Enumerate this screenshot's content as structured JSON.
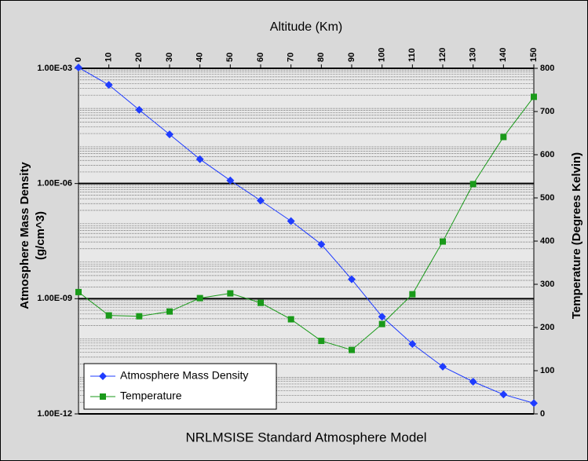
{
  "chart_data": {
    "type": "line",
    "title": "NRLMSISE Standard Atmosphere Model",
    "xlabel": "Altitude (Km)",
    "ylabel": [
      "Atmosphere Mass Density",
      "(g/cm^3)"
    ],
    "y2label": "Temperature (Degrees Kelvin)",
    "x": [
      0,
      10,
      20,
      30,
      40,
      50,
      60,
      70,
      80,
      90,
      100,
      110,
      120,
      130,
      140,
      150
    ],
    "xlim": [
      0,
      150
    ],
    "xticks": [
      0,
      10,
      20,
      30,
      40,
      50,
      60,
      70,
      80,
      90,
      100,
      110,
      120,
      130,
      140,
      150
    ],
    "ylog": true,
    "ylim": [
      1e-12,
      0.001
    ],
    "yticks": [
      {
        "value": 1e-12,
        "label": "1.00E-12"
      },
      {
        "value": 1e-09,
        "label": "1.00E-09"
      },
      {
        "value": 1e-06,
        "label": "1.00E-06"
      },
      {
        "value": 0.001,
        "label": "1.00E-03"
      }
    ],
    "y2lim": [
      0,
      800
    ],
    "y2ticks": [
      0,
      100,
      200,
      300,
      400,
      500,
      600,
      700,
      800
    ],
    "grid": true,
    "minor_grid": true,
    "legend": "lower left",
    "series": [
      {
        "name": "Atmosphere Mass Density",
        "color": "#1f3cff",
        "marker": "diamond",
        "values": [
          0.00105,
          0.00037,
          8.3e-05,
          1.9e-05,
          4.3e-06,
          1.2e-06,
          3.6e-07,
          1.05e-07,
          2.6e-08,
          3.2e-09,
          3.4e-10,
          6.6e-11,
          1.7e-11,
          6.9e-12,
          3.2e-12,
          1.9e-12
        ]
      },
      {
        "name": "Temperature",
        "color": "#1a9a1a",
        "marker": "square",
        "axis": "y2",
        "values": [
          282,
          228,
          226,
          237,
          268,
          279,
          257,
          219,
          169,
          148,
          208,
          277,
          399,
          532,
          641,
          734
        ]
      }
    ]
  }
}
